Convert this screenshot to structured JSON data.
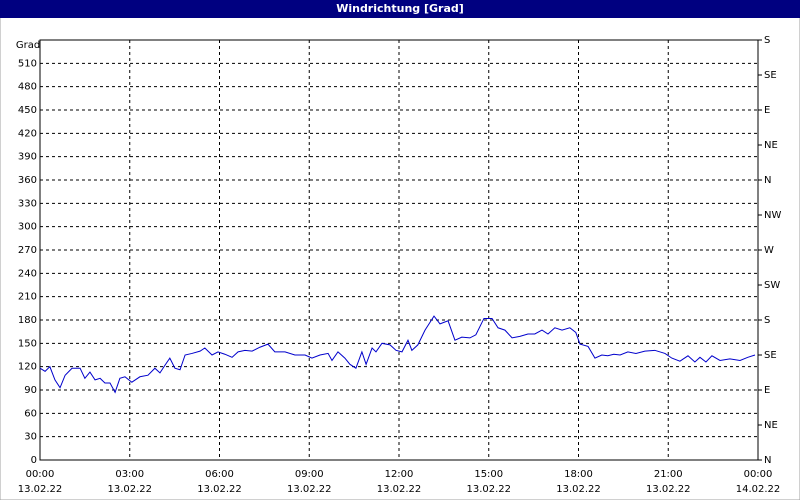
{
  "chart_data": {
    "type": "line",
    "title": "Windrichtung [Grad]",
    "ylabel": "Grad",
    "x": [
      0,
      0.17,
      0.33,
      0.5,
      0.67,
      0.84,
      1.07,
      1.34,
      1.5,
      1.67,
      1.84,
      2.01,
      2.17,
      2.34,
      2.51,
      2.67,
      2.84,
      3.07,
      3.34,
      3.61,
      3.84,
      4.01,
      4.18,
      4.34,
      4.51,
      4.68,
      4.85,
      5.08,
      5.35,
      5.51,
      5.75,
      5.95,
      6.18,
      6.42,
      6.62,
      6.85,
      7.09,
      7.35,
      7.62,
      7.85,
      8.19,
      8.52,
      8.86,
      9.09,
      9.36,
      9.63,
      9.76,
      9.96,
      10.19,
      10.36,
      10.56,
      10.76,
      10.9,
      11.1,
      11.23,
      11.43,
      11.7,
      11.9,
      12.1,
      12.3,
      12.43,
      12.63,
      12.87,
      13.17,
      13.37,
      13.64,
      13.87,
      14.1,
      14.37,
      14.57,
      14.84,
      15.11,
      15.31,
      15.54,
      15.78,
      16.04,
      16.31,
      16.54,
      16.78,
      16.98,
      17.21,
      17.45,
      17.71,
      17.91,
      18.05,
      18.32,
      18.55,
      18.78,
      18.98,
      19.18,
      19.39,
      19.65,
      19.92,
      20.22,
      20.55,
      20.89,
      21.12,
      21.39,
      21.66,
      21.89,
      22.06,
      22.26,
      22.46,
      22.73,
      23.06,
      23.4,
      23.66,
      23.9
    ],
    "series": [
      {
        "name": "Windrichtung",
        "color": "#0000cc",
        "values": [
          118,
          114,
          120,
          103,
          93,
          109,
          118,
          118,
          105,
          113,
          103,
          105,
          99,
          99,
          87,
          105,
          107,
          100,
          107,
          109,
          118,
          112,
          122,
          131,
          118,
          116,
          135,
          137,
          140,
          144,
          135,
          139,
          136,
          132,
          139,
          141,
          140,
          145,
          149,
          139,
          139,
          135,
          135,
          131,
          135,
          137,
          128,
          139,
          131,
          123,
          118,
          139,
          123,
          144,
          139,
          150,
          148,
          141,
          139,
          154,
          141,
          148,
          167,
          185,
          175,
          179,
          154,
          158,
          157,
          161,
          182,
          182,
          170,
          167,
          157,
          159,
          162,
          162,
          167,
          162,
          170,
          167,
          170,
          164,
          149,
          146,
          131,
          135,
          134,
          136,
          135,
          139,
          137,
          140,
          141,
          137,
          131,
          127,
          134,
          126,
          132,
          126,
          134,
          128,
          130,
          128,
          132,
          135
        ]
      }
    ],
    "xlim": [
      0,
      24
    ],
    "xticks": [
      {
        "value": 0,
        "label": "00:00"
      },
      {
        "value": 3,
        "label": "03:00"
      },
      {
        "value": 6,
        "label": "06:00"
      },
      {
        "value": 9,
        "label": "09:00"
      },
      {
        "value": 12,
        "label": "12:00"
      },
      {
        "value": 15,
        "label": "15:00"
      },
      {
        "value": 18,
        "label": "18:00"
      },
      {
        "value": 21,
        "label": "21:00"
      },
      {
        "value": 24,
        "label": "00:00"
      }
    ],
    "xtick_dates": [
      "13.02.22",
      "13.02.22",
      "13.02.22",
      "13.02.22",
      "13.02.22",
      "13.02.22",
      "13.02.22",
      "13.02.22",
      "14.02.22"
    ],
    "ylim": [
      0,
      540
    ],
    "yticks": [
      0,
      30,
      60,
      90,
      120,
      150,
      180,
      210,
      240,
      270,
      300,
      330,
      360,
      390,
      420,
      450,
      480,
      510
    ],
    "y2lim": [
      0,
      540
    ],
    "y2ticks": [
      {
        "value": 0,
        "label": "N"
      },
      {
        "value": 45,
        "label": "NE"
      },
      {
        "value": 90,
        "label": "E"
      },
      {
        "value": 135,
        "label": "SE"
      },
      {
        "value": 180,
        "label": "S"
      },
      {
        "value": 225,
        "label": "SW"
      },
      {
        "value": 270,
        "label": "W"
      },
      {
        "value": 315,
        "label": "NW"
      },
      {
        "value": 360,
        "label": "N"
      },
      {
        "value": 405,
        "label": "NE"
      },
      {
        "value": 450,
        "label": "E"
      },
      {
        "value": 495,
        "label": "SE"
      },
      {
        "value": 540,
        "label": "S"
      }
    ],
    "grid": true
  }
}
